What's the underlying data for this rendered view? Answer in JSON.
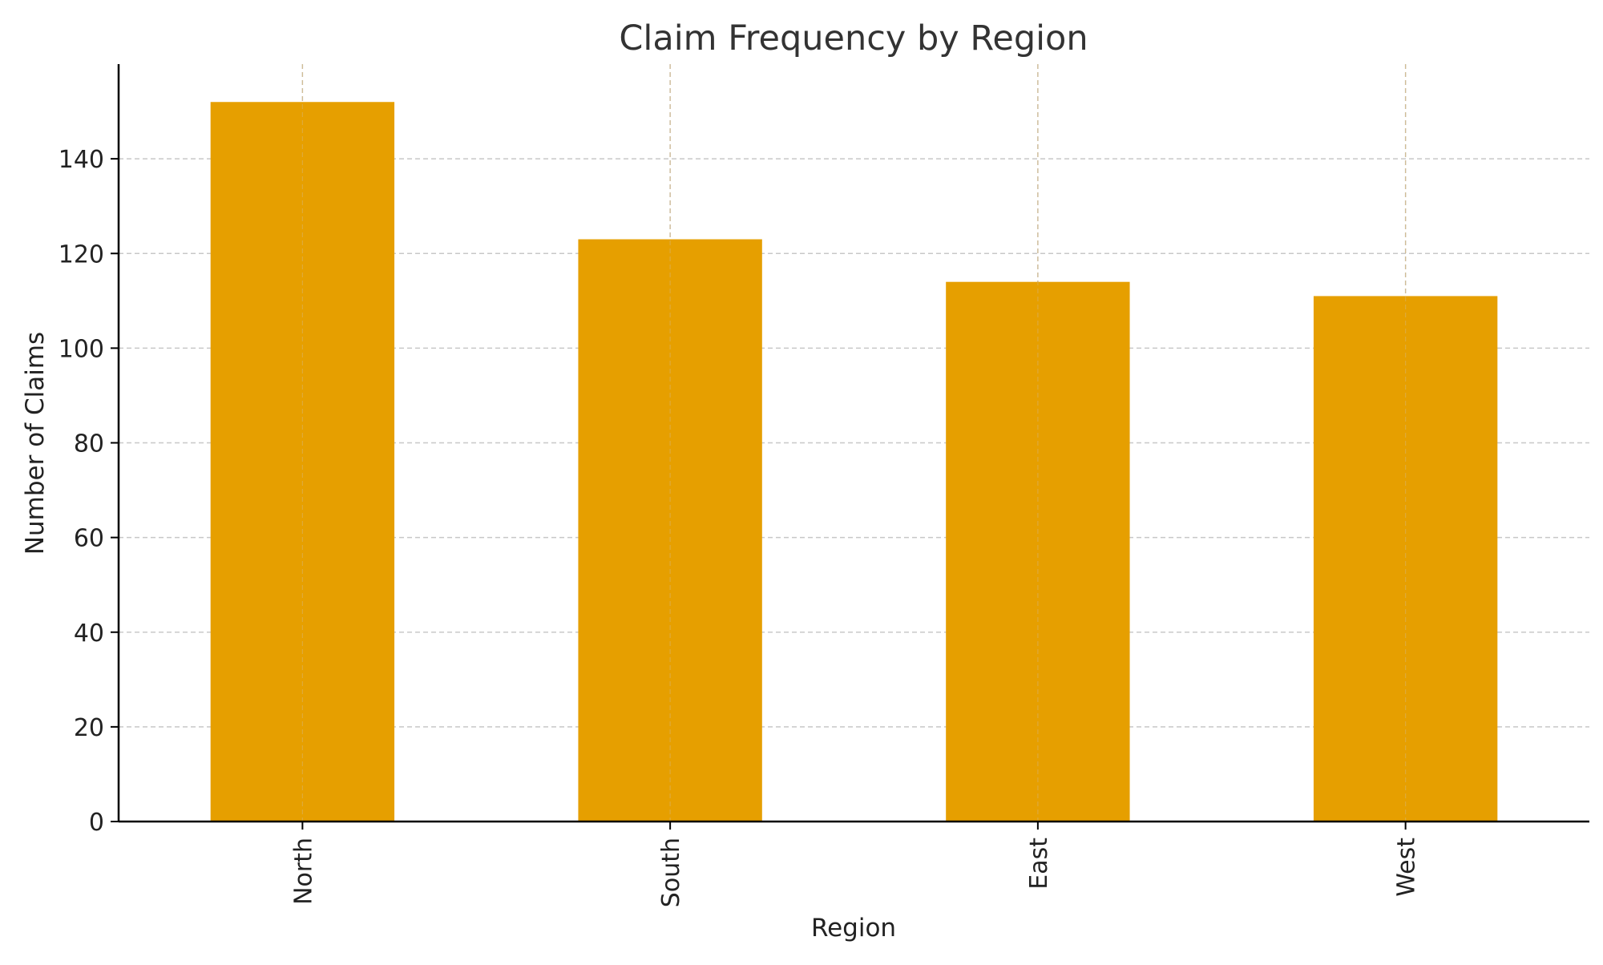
{
  "chart_data": {
    "type": "bar",
    "title": "Claim Frequency by Region",
    "xlabel": "Region",
    "ylabel": "Number of Claims",
    "categories": [
      "North",
      "South",
      "East",
      "West"
    ],
    "values": [
      152,
      123,
      114,
      111
    ],
    "ylim": [
      0,
      160
    ],
    "yticks": [
      0,
      20,
      40,
      60,
      80,
      100,
      120,
      140
    ],
    "bar_color": "#E69F00",
    "grid": true,
    "grid_style": "dashed"
  }
}
